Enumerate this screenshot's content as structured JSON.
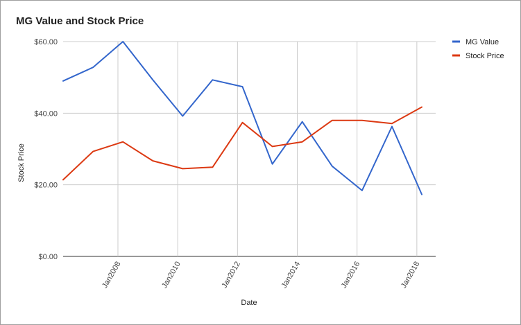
{
  "chart_data": {
    "type": "line",
    "title": "MG Value and Stock Price",
    "xlabel": "Date",
    "ylabel": "Stock Price",
    "x_ticks": [
      "Jan2008",
      "Jan2010",
      "Jan2012",
      "Jan2014",
      "Jan2016",
      "Jan2018"
    ],
    "y_ticks": [
      "$0.00",
      "$20.00",
      "$40.00",
      "$60.00"
    ],
    "ylim": [
      0,
      60
    ],
    "xlim": [
      "2006-03",
      "2018-08"
    ],
    "grid": true,
    "legend": "right",
    "series": [
      {
        "name": "MG Value",
        "color": "#3366cc",
        "points": [
          {
            "x": "2006-03",
            "y": 49.0
          },
          {
            "x": "2007-03",
            "y": 52.8
          },
          {
            "x": "2008-03",
            "y": 60.0
          },
          {
            "x": "2009-03",
            "y": 49.3
          },
          {
            "x": "2010-03",
            "y": 39.2
          },
          {
            "x": "2011-03",
            "y": 49.3
          },
          {
            "x": "2012-03",
            "y": 47.4
          },
          {
            "x": "2013-03",
            "y": 25.8
          },
          {
            "x": "2014-03",
            "y": 37.6
          },
          {
            "x": "2015-03",
            "y": 25.2
          },
          {
            "x": "2016-03",
            "y": 18.4
          },
          {
            "x": "2017-03",
            "y": 36.3
          },
          {
            "x": "2018-03",
            "y": 17.3
          }
        ]
      },
      {
        "name": "Stock Price",
        "color": "#dc3912",
        "points": [
          {
            "x": "2006-03",
            "y": 21.4
          },
          {
            "x": "2007-03",
            "y": 29.3
          },
          {
            "x": "2008-03",
            "y": 32.0
          },
          {
            "x": "2009-03",
            "y": 26.7
          },
          {
            "x": "2010-03",
            "y": 24.5
          },
          {
            "x": "2011-03",
            "y": 24.9
          },
          {
            "x": "2012-03",
            "y": 37.4
          },
          {
            "x": "2013-03",
            "y": 30.7
          },
          {
            "x": "2014-03",
            "y": 32.0
          },
          {
            "x": "2015-03",
            "y": 38.0
          },
          {
            "x": "2016-03",
            "y": 38.0
          },
          {
            "x": "2017-03",
            "y": 37.1
          },
          {
            "x": "2018-03",
            "y": 41.7
          }
        ]
      }
    ]
  }
}
